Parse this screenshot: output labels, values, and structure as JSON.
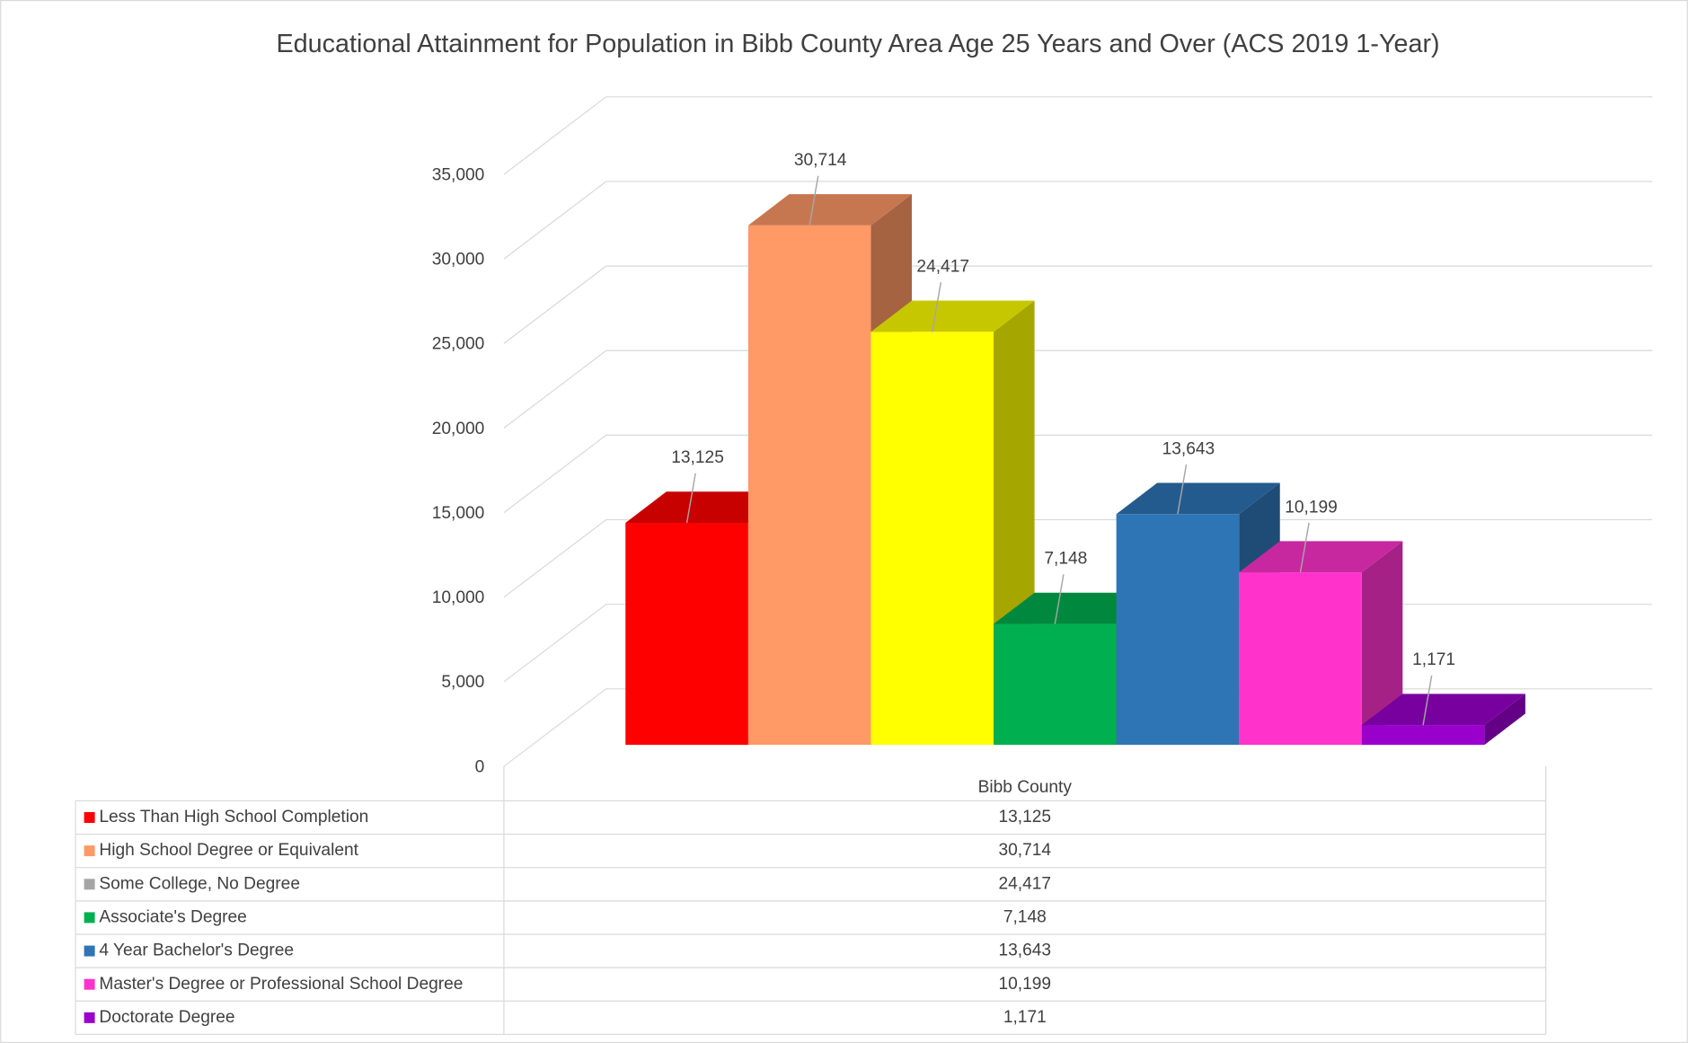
{
  "chart_data": {
    "type": "bar3d",
    "title": "Educational Attainment for Population in Bibb County Area Age 25 Years and Over (ACS 2019 1-Year)",
    "categories": [
      "Bibb County"
    ],
    "series": [
      {
        "name": "Less Than High School Completion",
        "color": "#ff0000",
        "values": [
          13125
        ],
        "value_labels": [
          "13,125"
        ]
      },
      {
        "name": "High School Degree or Equivalent",
        "color": "#ff9966",
        "values": [
          30714
        ],
        "value_labels": [
          "30,714"
        ]
      },
      {
        "name": "Some College, No Degree",
        "color": "#ffff00",
        "key_color": "#a5a5a5",
        "values": [
          24417
        ],
        "value_labels": [
          "24,417"
        ]
      },
      {
        "name": "Associate's Degree",
        "color": "#00b050",
        "values": [
          7148
        ],
        "value_labels": [
          "7,148"
        ]
      },
      {
        "name": "4 Year Bachelor's Degree",
        "color": "#2e75b6",
        "values": [
          13643
        ],
        "value_labels": [
          "13,643"
        ]
      },
      {
        "name": "Master's Degree or Professional School Degree",
        "color": "#ff33cc",
        "values": [
          10199
        ],
        "value_labels": [
          "10,199"
        ]
      },
      {
        "name": "Doctorate Degree",
        "color": "#9900cc",
        "values": [
          1171
        ],
        "value_labels": [
          "1,171"
        ]
      }
    ],
    "ylim": [
      0,
      35000
    ],
    "yticks": [
      0,
      {
        "value": 5000,
        "label": "5,000"
      },
      {
        "value": 10000,
        "label": "10,000"
      },
      {
        "value": 15000,
        "label": "15,000"
      },
      {
        "value": 20000,
        "label": "20,000"
      },
      {
        "value": 25000,
        "label": "25,000"
      },
      {
        "value": 30000,
        "label": "30,000"
      },
      {
        "value": 35000,
        "label": "35,000"
      }
    ],
    "grid": true,
    "data_table": true
  }
}
